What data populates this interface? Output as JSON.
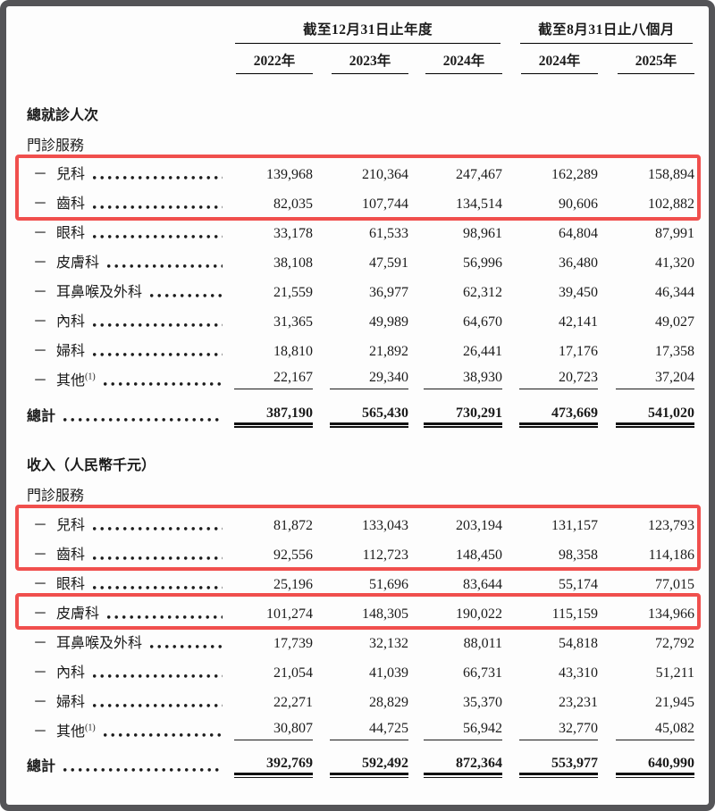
{
  "colors": {
    "frame": "#545457",
    "highlight": "#f04f4d",
    "text": "#1b1b1b"
  },
  "header": {
    "group1_label": "截至12月31日止年度",
    "group2_label": "截至8月31日止八個月",
    "years": [
      "2022年",
      "2023年",
      "2024年",
      "2024年",
      "2025年"
    ]
  },
  "row_prefix": "－",
  "sections": [
    {
      "title": "總就診人次",
      "subtitle": "門診服務",
      "rows": [
        {
          "label": "兒科",
          "values": [
            "139,968",
            "210,364",
            "247,467",
            "162,289",
            "158,894"
          ],
          "highlight": "box1"
        },
        {
          "label": "齒科",
          "values": [
            "82,035",
            "107,744",
            "134,514",
            "90,606",
            "102,882"
          ],
          "highlight": "box1"
        },
        {
          "label": "眼科",
          "values": [
            "33,178",
            "61,533",
            "98,961",
            "64,804",
            "87,991"
          ]
        },
        {
          "label": "皮膚科",
          "values": [
            "38,108",
            "47,591",
            "56,996",
            "36,480",
            "41,320"
          ]
        },
        {
          "label": "耳鼻喉及外科",
          "values": [
            "21,559",
            "36,977",
            "62,312",
            "39,450",
            "46,344"
          ]
        },
        {
          "label": "內科",
          "values": [
            "31,365",
            "49,989",
            "64,670",
            "42,141",
            "49,027"
          ]
        },
        {
          "label": "婦科",
          "values": [
            "18,810",
            "21,892",
            "26,441",
            "17,176",
            "17,358"
          ]
        },
        {
          "label": "其他",
          "sup": "(1)",
          "values": [
            "22,167",
            "29,340",
            "38,930",
            "20,723",
            "37,204"
          ]
        }
      ],
      "total_label": "總計",
      "total_values": [
        "387,190",
        "565,430",
        "730,291",
        "473,669",
        "541,020"
      ]
    },
    {
      "title": "收入（人民幣千元）",
      "subtitle": "門診服務",
      "rows": [
        {
          "label": "兒科",
          "values": [
            "81,872",
            "133,043",
            "203,194",
            "131,157",
            "123,793"
          ],
          "highlight": "box2"
        },
        {
          "label": "齒科",
          "values": [
            "92,556",
            "112,723",
            "148,450",
            "98,358",
            "114,186"
          ],
          "highlight": "box2"
        },
        {
          "label": "眼科",
          "values": [
            "25,196",
            "51,696",
            "83,644",
            "55,174",
            "77,015"
          ]
        },
        {
          "label": "皮膚科",
          "values": [
            "101,274",
            "148,305",
            "190,022",
            "115,159",
            "134,966"
          ],
          "highlight": "box3"
        },
        {
          "label": "耳鼻喉及外科",
          "values": [
            "17,739",
            "32,132",
            "88,011",
            "54,818",
            "72,792"
          ]
        },
        {
          "label": "內科",
          "values": [
            "21,054",
            "41,039",
            "66,731",
            "43,310",
            "51,211"
          ]
        },
        {
          "label": "婦科",
          "values": [
            "22,271",
            "28,829",
            "35,370",
            "23,231",
            "21,945"
          ]
        },
        {
          "label": "其他",
          "sup": "(1)",
          "values": [
            "30,807",
            "44,725",
            "56,942",
            "32,770",
            "45,082"
          ]
        }
      ],
      "total_label": "總計",
      "total_values": [
        "392,769",
        "592,492",
        "872,364",
        "553,977",
        "640,990"
      ]
    }
  ]
}
